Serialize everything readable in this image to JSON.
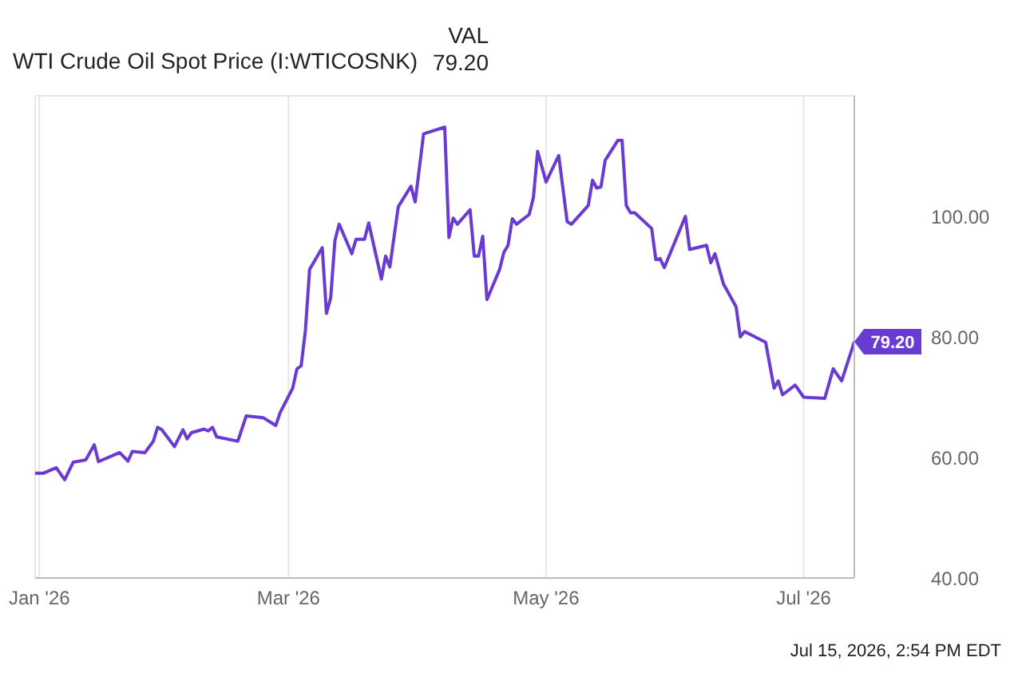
{
  "chart_data": {
    "type": "line",
    "x": [
      "2025-12-31",
      "2026-01-02",
      "2026-01-05",
      "2026-01-07",
      "2026-01-09",
      "2026-01-12",
      "2026-01-14",
      "2026-01-15",
      "2026-01-20",
      "2026-01-22",
      "2026-01-23",
      "2026-01-26",
      "2026-01-28",
      "2026-01-29",
      "2026-01-30",
      "2026-02-02",
      "2026-02-04",
      "2026-02-05",
      "2026-02-06",
      "2026-02-09",
      "2026-02-10",
      "2026-02-11",
      "2026-02-12",
      "2026-02-17",
      "2026-02-19",
      "2026-02-23",
      "2026-02-26",
      "2026-02-27",
      "2026-03-02",
      "2026-03-03",
      "2026-03-04",
      "2026-03-05",
      "2026-03-06",
      "2026-03-09",
      "2026-03-10",
      "2026-03-11",
      "2026-03-12",
      "2026-03-13",
      "2026-03-16",
      "2026-03-17",
      "2026-03-19",
      "2026-03-20",
      "2026-03-23",
      "2026-03-24",
      "2026-03-25",
      "2026-03-27",
      "2026-03-30",
      "2026-03-31",
      "2026-04-02",
      "2026-04-07",
      "2026-04-08",
      "2026-04-09",
      "2026-04-10",
      "2026-04-13",
      "2026-04-14",
      "2026-04-15",
      "2026-04-16",
      "2026-04-17",
      "2026-04-20",
      "2026-04-21",
      "2026-04-22",
      "2026-04-23",
      "2026-04-24",
      "2026-04-27",
      "2026-04-28",
      "2026-04-29",
      "2026-05-01",
      "2026-05-04",
      "2026-05-06",
      "2026-05-07",
      "2026-05-11",
      "2026-05-12",
      "2026-05-13",
      "2026-05-14",
      "2026-05-15",
      "2026-05-18",
      "2026-05-19",
      "2026-05-20",
      "2026-05-21",
      "2026-05-22",
      "2026-05-26",
      "2026-05-27",
      "2026-05-28",
      "2026-05-29",
      "2026-06-03",
      "2026-06-04",
      "2026-06-08",
      "2026-06-09",
      "2026-06-10",
      "2026-06-12",
      "2026-06-15",
      "2026-06-16",
      "2026-06-17",
      "2026-06-22",
      "2026-06-24",
      "2026-06-25",
      "2026-06-26",
      "2026-06-29",
      "2026-07-01",
      "2026-07-06",
      "2026-07-08",
      "2026-07-10",
      "2026-07-13"
    ],
    "series": [
      {
        "name": "WTI Crude Oil Spot Price (I:WTICOSNK)",
        "color": "#6a3bd0",
        "values": [
          57.4,
          57.4,
          58.3,
          56.3,
          59.2,
          59.6,
          62.1,
          59.3,
          60.8,
          59.4,
          61.0,
          60.8,
          62.7,
          65.0,
          64.6,
          61.8,
          64.6,
          63.1,
          64.1,
          64.7,
          64.4,
          65.0,
          63.4,
          62.7,
          66.9,
          66.6,
          65.3,
          67.4,
          71.5,
          74.7,
          75.2,
          81.0,
          91.2,
          94.8,
          83.9,
          86.5,
          96.0,
          98.7,
          93.8,
          96.2,
          96.2,
          98.9,
          89.6,
          93.4,
          91.6,
          101.6,
          105.0,
          102.4,
          113.7,
          114.8,
          96.5,
          99.7,
          98.7,
          101.1,
          93.4,
          93.4,
          96.7,
          86.2,
          91.2,
          94.0,
          95.2,
          99.6,
          98.7,
          100.3,
          103.1,
          110.8,
          105.7,
          110.1,
          99.1,
          98.7,
          101.8,
          106.0,
          104.7,
          104.9,
          109.3,
          112.6,
          112.6,
          101.8,
          100.6,
          100.6,
          98.0,
          92.8,
          93.0,
          91.5,
          100.0,
          94.5,
          95.2,
          92.3,
          93.8,
          88.8,
          85.0,
          80.0,
          80.9,
          79.1,
          71.5,
          72.7,
          70.4,
          72.0,
          70.0,
          69.8,
          74.7,
          72.7,
          79.2
        ]
      }
    ],
    "xlim": [
      "2025-12-31",
      "2026-07-13"
    ],
    "xticks": [
      {
        "value": "2026-01-01",
        "label": "Jan '26"
      },
      {
        "value": "2026-03-01",
        "label": "Mar '26"
      },
      {
        "value": "2026-05-01",
        "label": "May '26"
      },
      {
        "value": "2026-07-01",
        "label": "Jul '26"
      }
    ],
    "ylim": [
      40,
      120
    ],
    "yticks": [
      {
        "value": 40,
        "label": "40.00"
      },
      {
        "value": 60,
        "label": "60.00"
      },
      {
        "value": 80,
        "label": "80.00"
      },
      {
        "value": 100,
        "label": "100.00"
      }
    ],
    "grid": true,
    "legend": "top left",
    "marker": "none",
    "line_style": "solid",
    "annotations": [
      "VAL",
      "79.20",
      {
        "text": "79.20",
        "x": "2026-07-13",
        "y": 79.2
      },
      "Jul 15, 2026, 2:54 PM EDT"
    ]
  }
}
